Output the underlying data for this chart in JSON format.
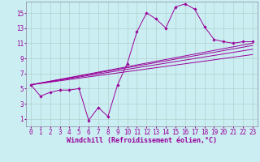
{
  "background_color": "#cbeef3",
  "plot_bg_color": "#cbeef3",
  "line_color": "#990099",
  "grid_color": "#b0d0cc",
  "xlabel": "Windchill (Refroidissement éolien,°C)",
  "xlabel_fontsize": 6.0,
  "tick_fontsize": 5.5,
  "xlim": [
    -0.5,
    23.5
  ],
  "ylim": [
    0,
    16.5
  ],
  "yticks": [
    1,
    3,
    5,
    7,
    9,
    11,
    13,
    15
  ],
  "xticks": [
    0,
    1,
    2,
    3,
    4,
    5,
    6,
    7,
    8,
    9,
    10,
    11,
    12,
    13,
    14,
    15,
    16,
    17,
    18,
    19,
    20,
    21,
    22,
    23
  ],
  "main_x": [
    0,
    1,
    2,
    3,
    4,
    5,
    6,
    7,
    8,
    9,
    10,
    11,
    12,
    13,
    14,
    15,
    16,
    17,
    18,
    19,
    20,
    21,
    22,
    23
  ],
  "main_y": [
    5.5,
    4.0,
    4.5,
    4.8,
    4.8,
    5.0,
    0.8,
    2.5,
    1.3,
    5.5,
    8.3,
    12.5,
    15.0,
    14.2,
    13.0,
    15.8,
    16.2,
    15.5,
    13.2,
    11.5,
    11.2,
    11.0,
    11.2,
    11.2
  ],
  "line1_x": [
    0,
    23
  ],
  "line1_y": [
    5.5,
    11.0
  ],
  "line2_x": [
    0,
    23
  ],
  "line2_y": [
    5.5,
    10.2
  ],
  "line3_x": [
    0,
    23
  ],
  "line3_y": [
    5.5,
    9.5
  ],
  "line4_x": [
    0,
    23
  ],
  "line4_y": [
    5.5,
    10.7
  ]
}
